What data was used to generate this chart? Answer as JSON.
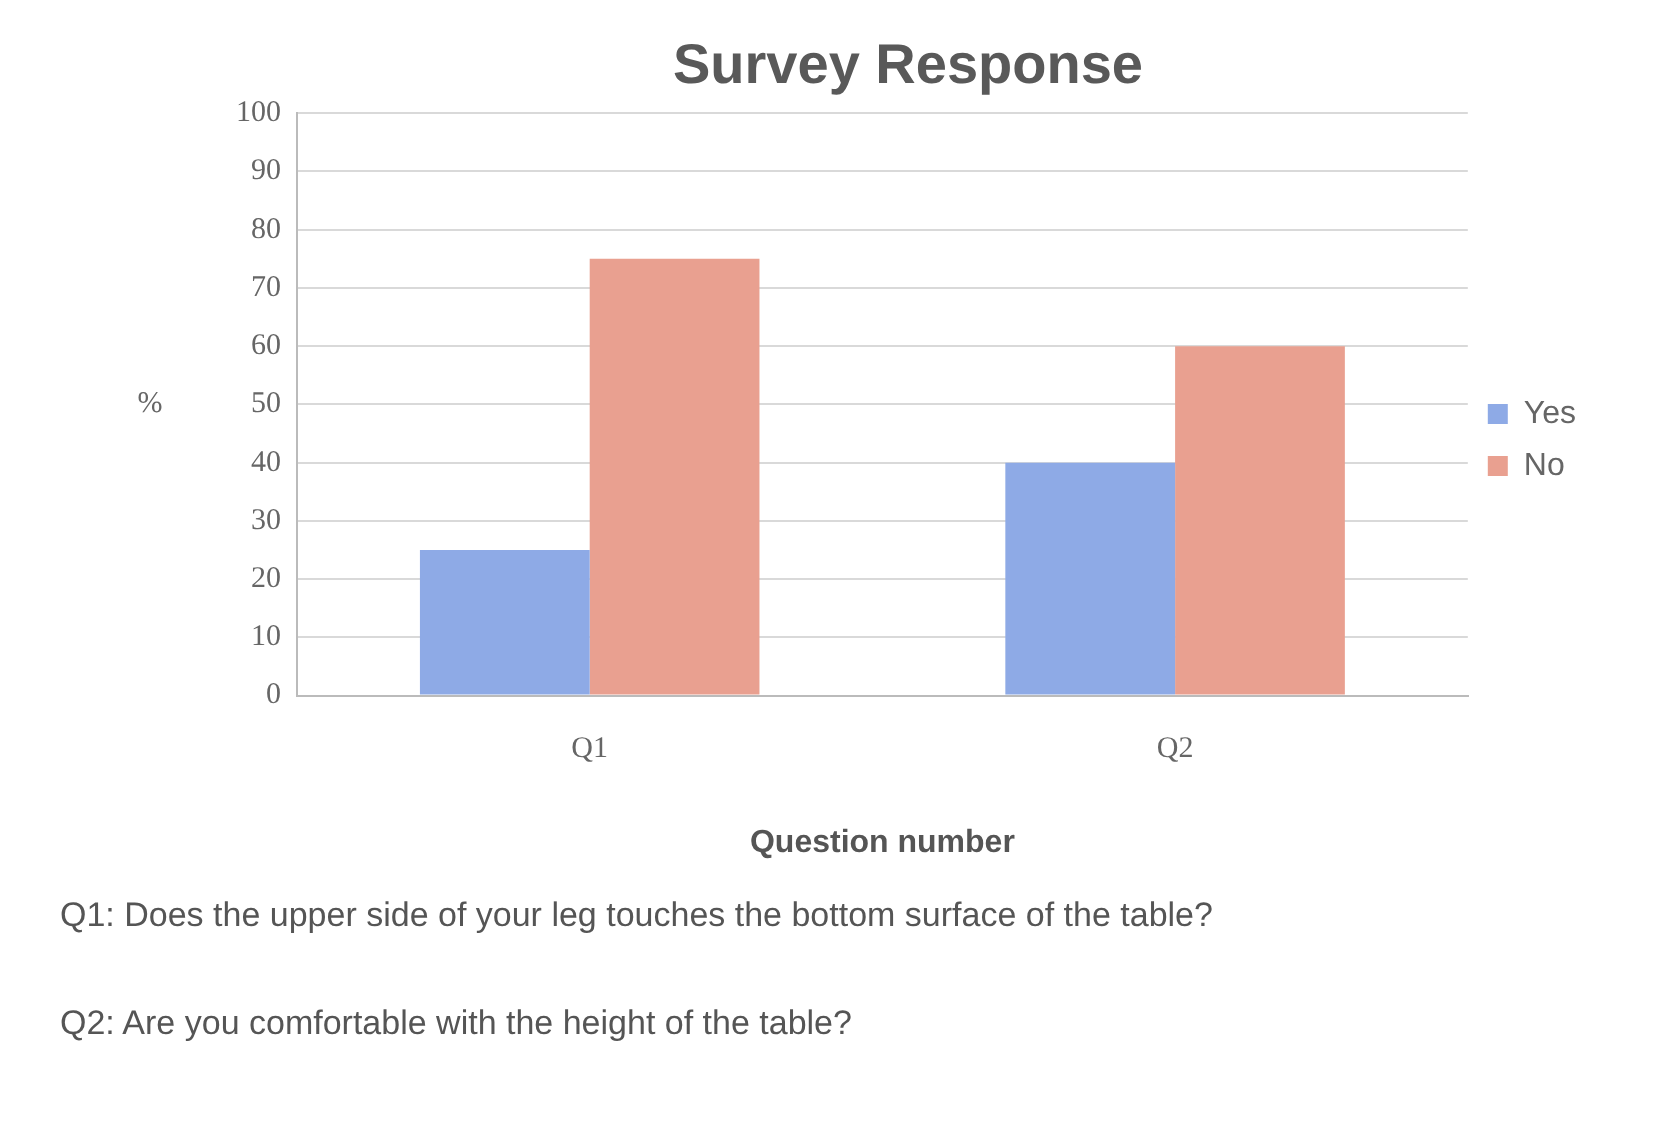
{
  "chart_data": {
    "type": "bar",
    "title": "Survey Response",
    "xlabel": "Question number",
    "ylabel": "%",
    "categories": [
      "Q1",
      "Q2"
    ],
    "series": [
      {
        "name": "Yes",
        "color": "#8eaae6",
        "values": [
          25,
          40
        ]
      },
      {
        "name": "No",
        "color": "#e9a090",
        "values": [
          75,
          60
        ]
      }
    ],
    "ylim": [
      0,
      100
    ],
    "yticks": [
      0,
      10,
      20,
      30,
      40,
      50,
      60,
      70,
      80,
      90,
      100
    ],
    "grid": "y",
    "legend": "right",
    "annotations": [
      "Q1: Does the upper side of your leg touches the bottom surface of the table?",
      "Q2: Are you comfortable with the height of the table?"
    ]
  }
}
